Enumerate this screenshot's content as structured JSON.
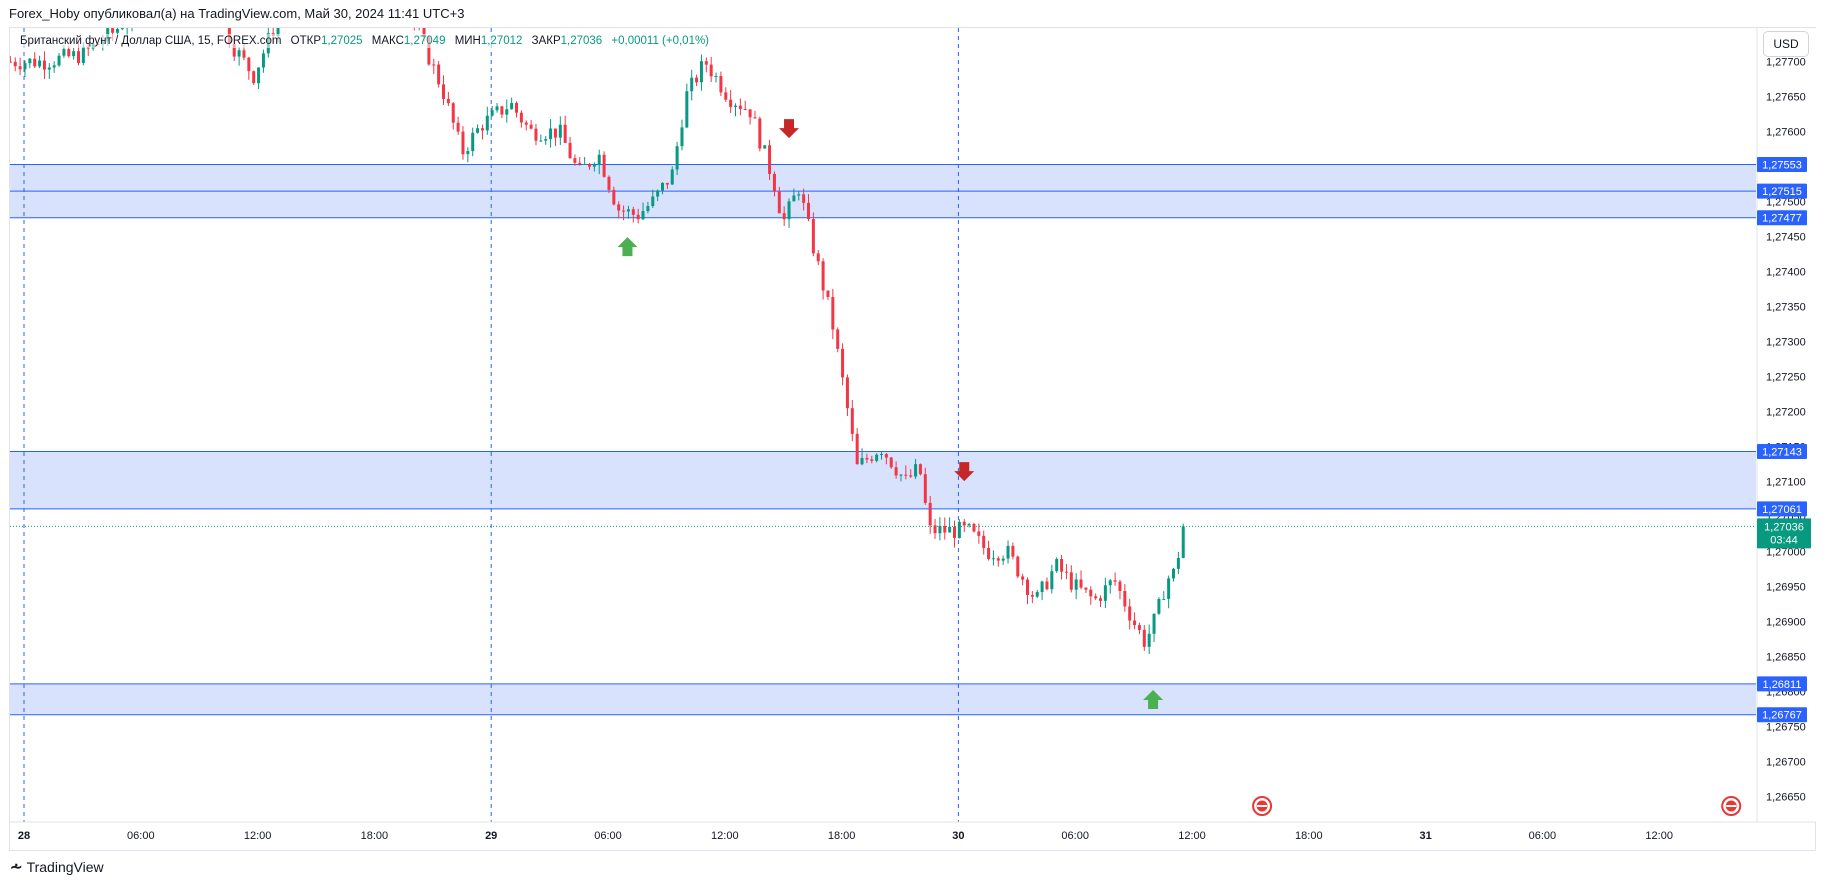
{
  "header": {
    "caption": "Forex_Hoby опубликовал(а) на TradingView.com, Май 30, 2024 11:41 UTC+3"
  },
  "legend": {
    "symbol": "Британский фунт / Доллар США, 15, FOREX.com",
    "open_label": "ОТКР",
    "open_value": "1,27025",
    "high_label": "МАКС",
    "high_value": "1,27049",
    "low_label": "МИН",
    "low_value": "1,27012",
    "close_label": "ЗАКР",
    "close_value": "1,27036",
    "change": "+0,00011 (+0,01%)"
  },
  "currency_button": {
    "label": "USD"
  },
  "footer": {
    "logo_text": "TradingView"
  },
  "colors": {
    "up": "#089981",
    "down": "#f23645",
    "zone_fill": "#d4dffd",
    "zone_line": "#2962ff",
    "vline": "#2962ff",
    "arrow_up": "#4caf50",
    "arrow_down": "#c62828",
    "last_price_bg": "#089981"
  },
  "chart_data": {
    "type": "candlestick",
    "title": "",
    "xlabel": "",
    "ylabel": "",
    "ylim": [
      1.2662,
      1.2782
    ],
    "y_ticks": [
      "1,27700",
      "1,27650",
      "1,27600",
      "1,27550",
      "1,27500",
      "1,27450",
      "1,27400",
      "1,27350",
      "1,27300",
      "1,27250",
      "1,27200",
      "1,27150",
      "1,27100",
      "1,27050",
      "1,27000",
      "1,26950",
      "1,26900",
      "1,26850",
      "1,26800",
      "1,26750",
      "1,26700",
      "1,26650"
    ],
    "y_tick_values": [
      1.277,
      1.2765,
      1.276,
      1.2755,
      1.275,
      1.2745,
      1.274,
      1.2735,
      1.273,
      1.2725,
      1.272,
      1.2715,
      1.271,
      1.2705,
      1.27,
      1.2695,
      1.269,
      1.2685,
      1.268,
      1.2675,
      1.267,
      1.2665
    ],
    "x_ticks": [
      {
        "label": "28",
        "hour": 0,
        "bold": true
      },
      {
        "label": "06:00",
        "hour": 6
      },
      {
        "label": "12:00",
        "hour": 12
      },
      {
        "label": "18:00",
        "hour": 18
      },
      {
        "label": "29",
        "hour": 24,
        "bold": true
      },
      {
        "label": "06:00",
        "hour": 30
      },
      {
        "label": "12:00",
        "hour": 36
      },
      {
        "label": "18:00",
        "hour": 42
      },
      {
        "label": "30",
        "hour": 48,
        "bold": true
      },
      {
        "label": "06:00",
        "hour": 54
      },
      {
        "label": "12:00",
        "hour": 60
      },
      {
        "label": "18:00",
        "hour": 66
      },
      {
        "label": "31",
        "hour": 72,
        "bold": true
      },
      {
        "label": "06:00",
        "hour": 78
      },
      {
        "label": "12:00",
        "hour": 84
      }
    ],
    "x_range_hours": [
      -0.7,
      89.6
    ],
    "day_separators_hours": [
      0,
      24,
      48
    ],
    "zones": [
      {
        "top": 1.27553,
        "bottom": 1.27477,
        "mid": 1.27515,
        "labels": [
          "1,27553",
          "1,27515",
          "1,27477"
        ]
      },
      {
        "top": 1.27143,
        "bottom": 1.27061,
        "labels": [
          "1,27143",
          "1,27061"
        ]
      },
      {
        "top": 1.26811,
        "bottom": 1.26767,
        "labels": [
          "1,26811",
          "1,26767"
        ]
      }
    ],
    "last_price": {
      "value": 1.27036,
      "label": "1,27036",
      "countdown": "03:44"
    },
    "arrows": [
      {
        "dir": "up",
        "hour": 31.0,
        "price": 1.27435
      },
      {
        "dir": "down",
        "hour": 39.3,
        "price": 1.27605
      },
      {
        "dir": "up",
        "hour": 58.0,
        "price": 1.26788
      },
      {
        "dir": "down",
        "hour": 48.3,
        "price": 1.27115
      }
    ],
    "event_icons_hours": [
      63.6,
      87.7
    ],
    "anchors": [
      [
        -0.7,
        1.277
      ],
      [
        1.0,
        1.277
      ],
      [
        3.0,
        1.2771
      ],
      [
        4.5,
        1.2774
      ],
      [
        6.0,
        1.2778
      ],
      [
        8.0,
        1.2778
      ],
      [
        9.5,
        1.278
      ],
      [
        10.8,
        1.2772
      ],
      [
        11.8,
        1.2768
      ],
      [
        13.0,
        1.2776
      ],
      [
        15.0,
        1.2782
      ],
      [
        17.0,
        1.2781
      ],
      [
        19.0,
        1.2781
      ],
      [
        20.3,
        1.2774
      ],
      [
        21.5,
        1.2766
      ],
      [
        22.5,
        1.2757
      ],
      [
        23.5,
        1.2761
      ],
      [
        24.0,
        1.2762
      ],
      [
        25.0,
        1.2764
      ],
      [
        26.0,
        1.276
      ],
      [
        27.5,
        1.276
      ],
      [
        28.5,
        1.2754
      ],
      [
        29.5,
        1.2757
      ],
      [
        30.5,
        1.2749
      ],
      [
        31.5,
        1.2748
      ],
      [
        32.3,
        1.275
      ],
      [
        33.3,
        1.2754
      ],
      [
        34.0,
        1.2765
      ],
      [
        35.0,
        1.277
      ],
      [
        36.2,
        1.2765
      ],
      [
        37.3,
        1.2763
      ],
      [
        38.5,
        1.2753
      ],
      [
        39.0,
        1.2747
      ],
      [
        39.8,
        1.2752
      ],
      [
        40.5,
        1.2744
      ],
      [
        41.5,
        1.2733
      ],
      [
        42.2,
        1.2722
      ],
      [
        42.8,
        1.2712
      ],
      [
        44.0,
        1.2715
      ],
      [
        45.3,
        1.271
      ],
      [
        46.0,
        1.2712
      ],
      [
        46.5,
        1.2703
      ],
      [
        47.5,
        1.2703
      ],
      [
        48.5,
        1.2703
      ],
      [
        49.5,
        1.27
      ],
      [
        50.5,
        1.27
      ],
      [
        52.0,
        1.2693
      ],
      [
        53.0,
        1.2698
      ],
      [
        54.0,
        1.2695
      ],
      [
        55.0,
        1.2693
      ],
      [
        56.0,
        1.2696
      ],
      [
        57.0,
        1.269
      ],
      [
        57.6,
        1.2687
      ],
      [
        58.2,
        1.2691
      ],
      [
        58.7,
        1.2696
      ],
      [
        59.1,
        1.2697
      ],
      [
        59.6,
        1.27036
      ]
    ]
  }
}
